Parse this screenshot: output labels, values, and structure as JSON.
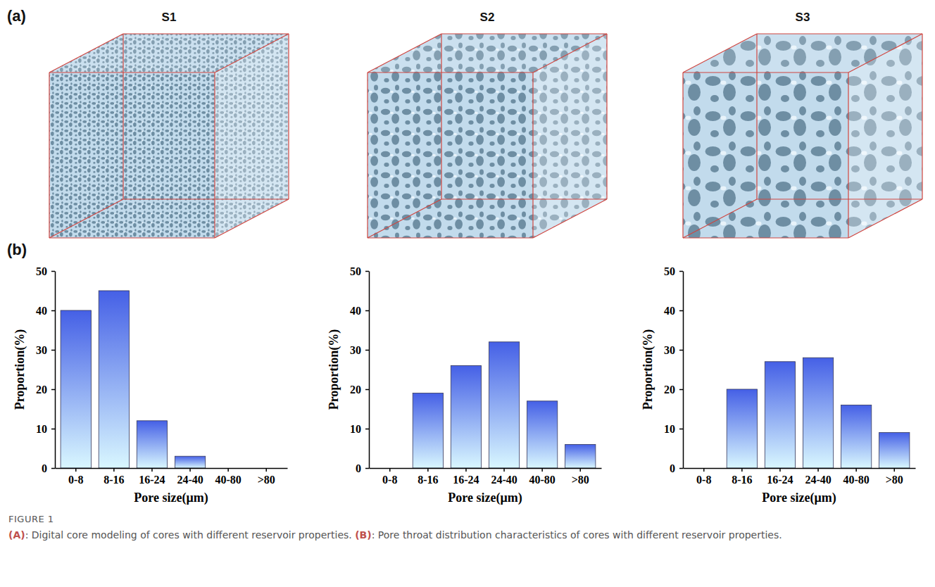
{
  "figure": {
    "panel_labels": [
      "(a)",
      "(b)"
    ],
    "samples": [
      "S1",
      "S2",
      "S3"
    ],
    "caption": {
      "label": "FIGURE 1",
      "parts": [
        {
          "label": "(A)",
          "text": ": Digital core modeling of cores with different reservoir properties. "
        },
        {
          "label": "(B)",
          "text": ": Pore throat distribution characteristics of cores with different reservoir properties."
        }
      ]
    }
  },
  "chart_data": [
    {
      "type": "bar",
      "categories": [
        "0-8",
        "8-16",
        "16-24",
        "24-40",
        "40-80",
        ">80"
      ],
      "values": [
        40,
        45,
        12,
        3,
        0,
        0
      ],
      "color": "#4560e6",
      "x_label": "Pore size(μm)",
      "y_label": "Proportion(%)",
      "ylim": [
        0,
        50
      ],
      "yticks": [
        0,
        10,
        20,
        30,
        40,
        50
      ],
      "grid": false
    },
    {
      "type": "bar",
      "categories": [
        "0-8",
        "8-16",
        "16-24",
        "24-40",
        "40-80",
        ">80"
      ],
      "values": [
        0,
        19,
        26,
        32,
        17,
        6
      ],
      "color": "#4560e6",
      "x_label": "Pore size(μm)",
      "y_label": "Proportion(%)",
      "ylim": [
        0,
        50
      ],
      "yticks": [
        0,
        10,
        20,
        30,
        40,
        50
      ],
      "grid": false
    },
    {
      "type": "bar",
      "categories": [
        "0-8",
        "8-16",
        "16-24",
        "24-40",
        "40-80",
        ">80"
      ],
      "values": [
        0,
        20,
        27,
        28,
        16,
        9
      ],
      "color": "#4560e6",
      "x_label": "Pore size(μm)",
      "y_label": "Proportion(%)",
      "ylim": [
        0,
        50
      ],
      "yticks": [
        0,
        10,
        20,
        30,
        40,
        50
      ],
      "grid": false
    }
  ]
}
